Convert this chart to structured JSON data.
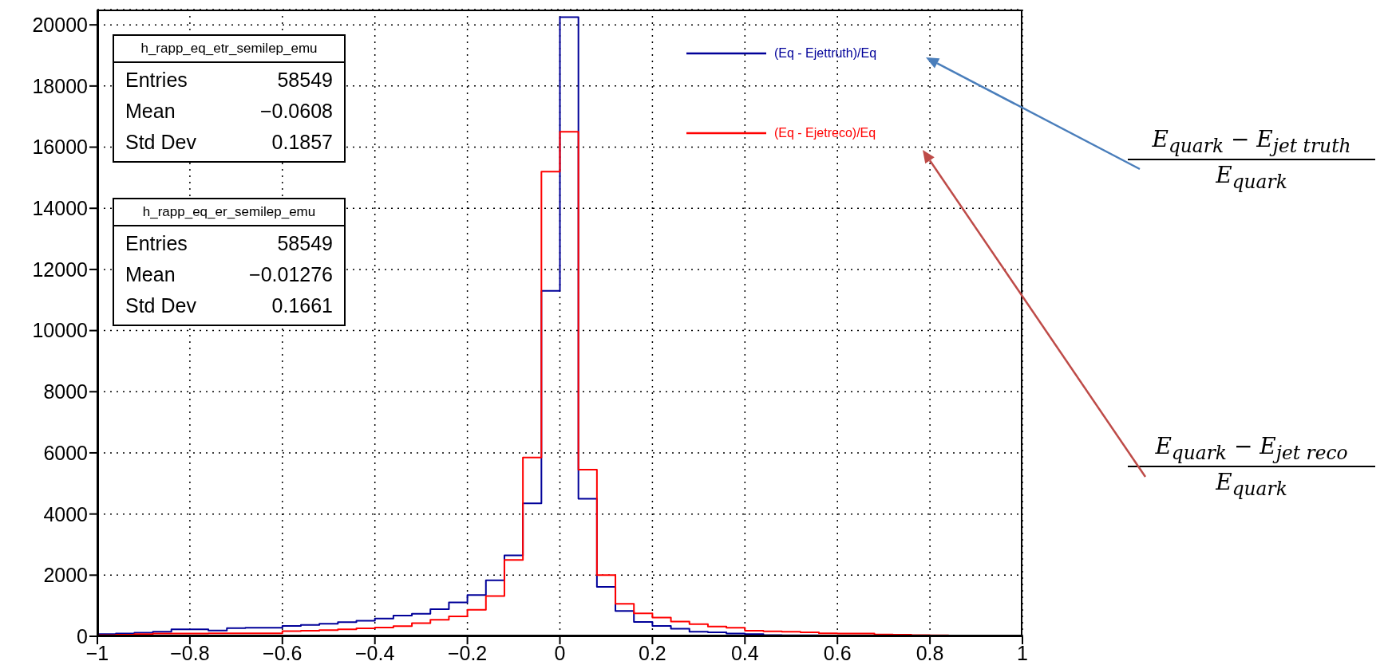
{
  "chart_data": {
    "type": "histogram",
    "bins": [
      -1,
      -0.96,
      -0.92,
      -0.88,
      -0.84,
      -0.8,
      -0.76,
      -0.72,
      -0.68,
      -0.64,
      -0.6,
      -0.56,
      -0.52,
      -0.48,
      -0.44,
      -0.4,
      -0.36,
      -0.32,
      -0.28,
      -0.24,
      -0.2,
      -0.16,
      -0.12,
      -0.08,
      -0.04,
      0,
      0.04,
      0.08,
      0.12,
      0.16,
      0.2,
      0.24,
      0.28,
      0.32,
      0.36,
      0.4,
      0.44,
      0.48,
      0.52,
      0.56,
      0.6,
      0.64,
      0.68,
      0.72,
      0.76,
      0.8,
      0.84,
      0.88,
      0.92,
      0.96,
      1
    ],
    "series": [
      {
        "name": "(Eq - Ejettruth)/Eq",
        "color": "#000099",
        "values": [
          70,
          90,
          120,
          150,
          230,
          230,
          190,
          270,
          280,
          280,
          340,
          370,
          410,
          460,
          510,
          580,
          680,
          740,
          890,
          1110,
          1350,
          1830,
          2650,
          4350,
          11300,
          20250,
          4500,
          1620,
          830,
          470,
          340,
          250,
          150,
          130,
          90,
          70,
          40,
          30,
          30,
          10,
          10,
          10,
          10,
          10,
          10,
          0,
          0,
          0,
          0,
          0
        ]
      },
      {
        "name": "(Eq - Ejetreco)/Eq",
        "color": "#ff0000",
        "values": [
          40,
          50,
          70,
          90,
          90,
          90,
          100,
          100,
          100,
          100,
          170,
          180,
          200,
          230,
          260,
          290,
          330,
          430,
          540,
          650,
          870,
          1320,
          2500,
          5850,
          15200,
          16500,
          5450,
          2000,
          1060,
          750,
          610,
          480,
          400,
          320,
          280,
          180,
          160,
          150,
          130,
          100,
          90,
          90,
          60,
          50,
          40,
          30,
          20,
          10,
          10,
          10
        ]
      }
    ],
    "xlim": [
      -1,
      1
    ],
    "ylim": [
      0,
      20500
    ],
    "xticks": [
      -1,
      -0.8,
      -0.6,
      -0.4,
      -0.2,
      0,
      0.2,
      0.4,
      0.6,
      0.8,
      1
    ],
    "yticks": [
      0,
      2000,
      4000,
      6000,
      8000,
      10000,
      12000,
      14000,
      16000,
      18000,
      20000
    ],
    "grid": true,
    "legend": "top right",
    "annotations": [
      "h_rapp_eq_etr_semilep_emu",
      "Entries",
      "58549",
      "Mean",
      "−0.0608",
      "Std Dev",
      "0.1857",
      "h_rapp_eq_er_semilep_emu",
      "Entries",
      "58549",
      "Mean",
      "−0.01276",
      "Std Dev",
      "0.1661",
      "E$_{quark}$ −  E$_{jet truth}$",
      "E$_{quark}$",
      "E$_{quark}$ −  E$_{jet reco}$",
      "E$_{quark}$"
    ]
  }
}
